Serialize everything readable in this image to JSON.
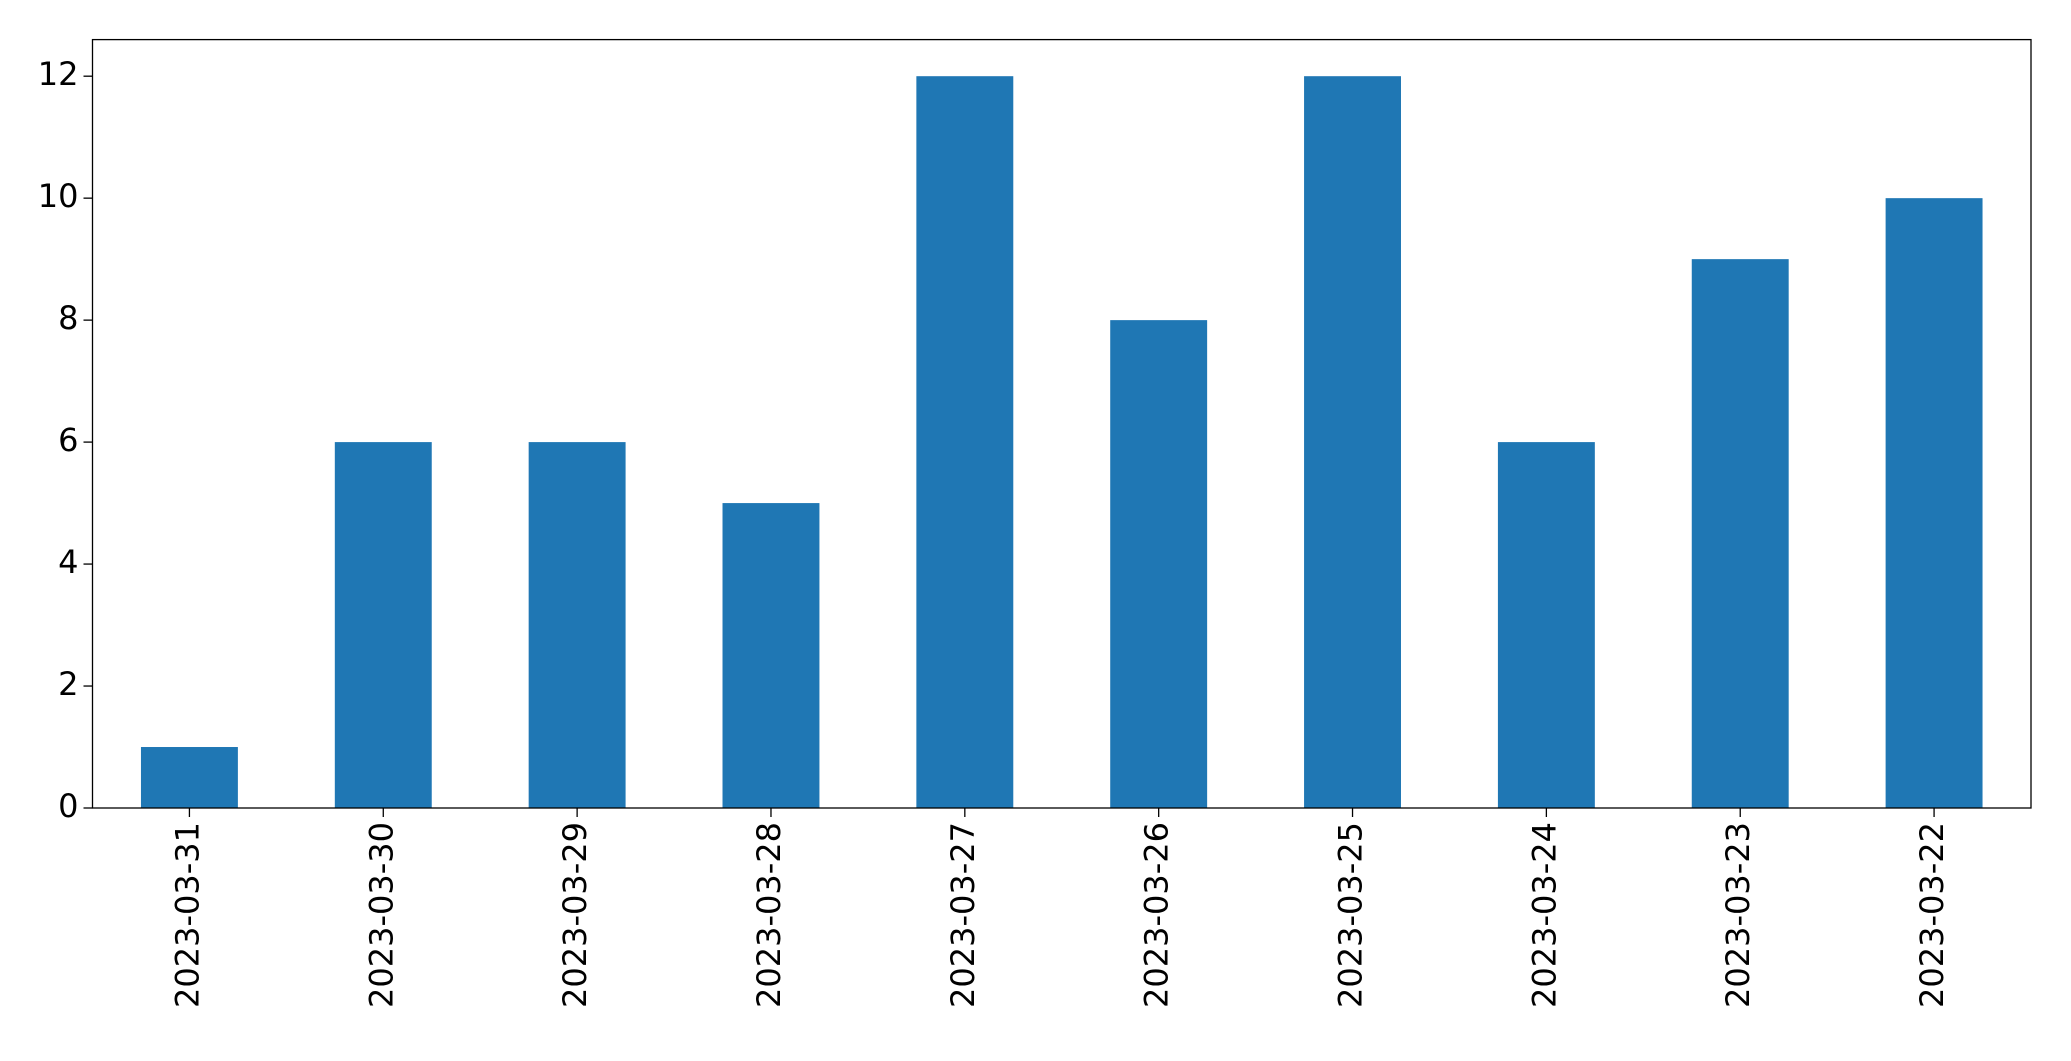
{
  "chart_data": {
    "type": "bar",
    "categories": [
      "2023-03-31",
      "2023-03-30",
      "2023-03-29",
      "2023-03-28",
      "2023-03-27",
      "2023-03-26",
      "2023-03-25",
      "2023-03-24",
      "2023-03-23",
      "2023-03-22"
    ],
    "values": [
      1,
      6,
      6,
      5,
      12,
      8,
      12,
      6,
      9,
      10
    ],
    "color": "#1f77b4",
    "ylim": [
      0,
      12.6
    ],
    "yticks": [
      0,
      2,
      4,
      6,
      8,
      10,
      12
    ],
    "grid": false
  }
}
